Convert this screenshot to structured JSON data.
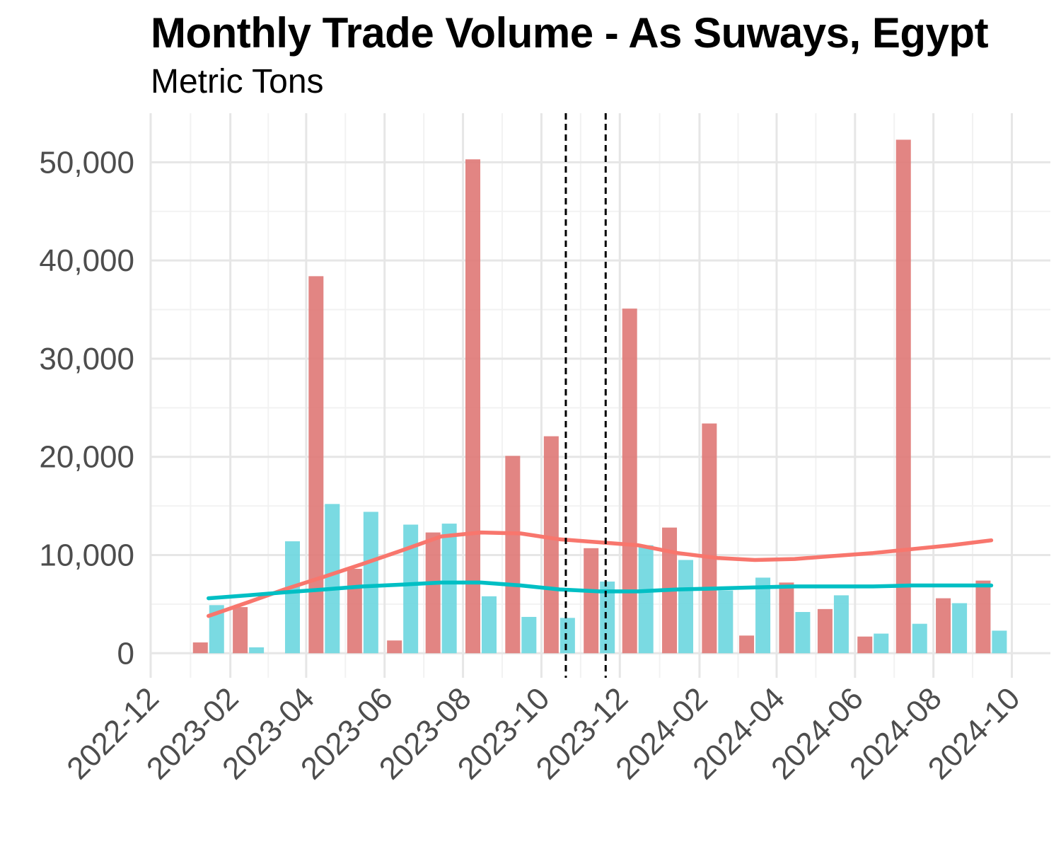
{
  "chart_data": {
    "type": "bar",
    "title": "Monthly Trade Volume - As Suways, Egypt",
    "subtitle": "Metric Tons",
    "xlabel": "",
    "ylabel": "",
    "ylim": [
      -2500,
      55000
    ],
    "xlim": [
      "2022-12-01",
      "2024-10-31"
    ],
    "grid": true,
    "legend": "none",
    "y_ticks": [
      0,
      10000,
      20000,
      30000,
      40000,
      50000
    ],
    "y_tick_labels": [
      "0",
      "10,000",
      "20,000",
      "30,000",
      "40,000",
      "50,000"
    ],
    "x_ticks": [
      "2022-12-01",
      "2023-02-01",
      "2023-04-01",
      "2023-06-01",
      "2023-08-01",
      "2023-10-01",
      "2023-12-01",
      "2024-02-01",
      "2024-04-01",
      "2024-06-01",
      "2024-08-01",
      "2024-10-01"
    ],
    "x_tick_labels": [
      "2022-12",
      "2023-02",
      "2023-04",
      "2023-06",
      "2023-08",
      "2023-10",
      "2023-12",
      "2024-02",
      "2024-04",
      "2024-06",
      "2024-08",
      "2024-10"
    ],
    "months": [
      "2023-01",
      "2023-02",
      "2023-03",
      "2023-04",
      "2023-05",
      "2023-06",
      "2023-07",
      "2023-08",
      "2023-09",
      "2023-10",
      "2023-11",
      "2023-12",
      "2024-01",
      "2024-02",
      "2024-03",
      "2024-04",
      "2024-05",
      "2024-06",
      "2024-07",
      "2024-08",
      "2024-09"
    ],
    "series": [
      {
        "color": "#e07b78",
        "values": [
          1100,
          4700,
          0,
          38400,
          8600,
          1300,
          12300,
          50300,
          20100,
          22100,
          10700,
          35100,
          12800,
          23400,
          1800,
          7200,
          4500,
          1700,
          52300,
          5600,
          7400
        ],
        "trend": [
          3800,
          5200,
          6500,
          7800,
          9100,
          10500,
          11900,
          12300,
          12200,
          11600,
          11300,
          11000,
          10200,
          9700,
          9500,
          9600,
          9900,
          10200,
          10600,
          11000,
          11500
        ]
      },
      {
        "color": "#6fd7df",
        "values": [
          4900,
          600,
          11400,
          15200,
          14400,
          13100,
          13200,
          5800,
          3700,
          3600,
          7300,
          11000,
          9500,
          6400,
          7700,
          4200,
          5900,
          2000,
          3000,
          5100,
          2300
        ],
        "trend": [
          5600,
          5900,
          6200,
          6500,
          6800,
          7000,
          7200,
          7200,
          6900,
          6500,
          6300,
          6300,
          6500,
          6600,
          6700,
          6800,
          6800,
          6800,
          6900,
          6900,
          6900
        ],
        "trend_color": "#00bfc4"
      }
    ],
    "vlines": [
      "2023-10-20",
      "2023-11-20"
    ]
  }
}
